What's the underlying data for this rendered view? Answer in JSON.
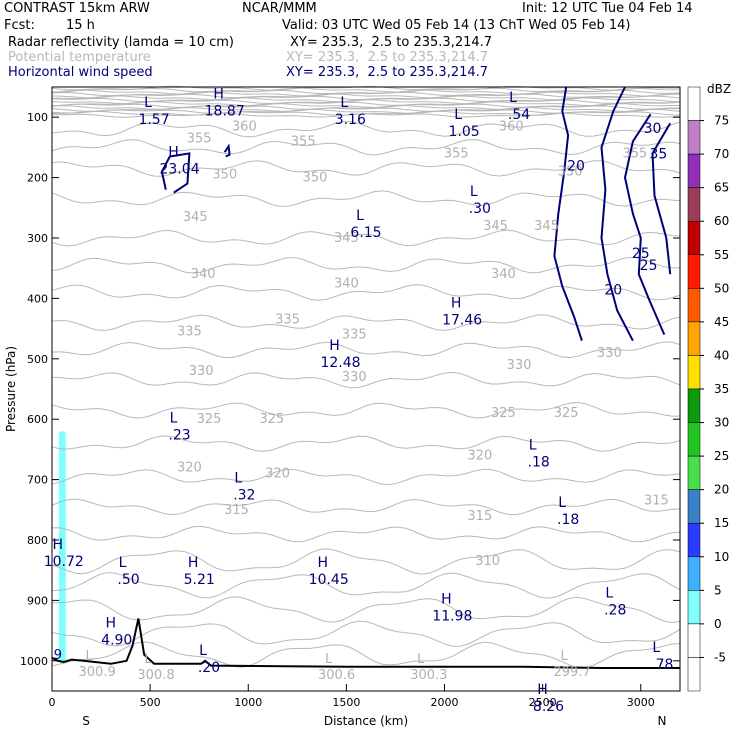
{
  "header": {
    "model": "CONTRAST 15km ARW",
    "org": "NCAR/MMM",
    "init": "Init: 12 UTC Tue 04 Feb 14",
    "fcst_label": "Fcst:",
    "fcst_value": "15 h",
    "valid": "Valid: 03 UTC Wed 05 Feb 14 (13 ChT Wed 05 Feb 14)",
    "fields": [
      {
        "name": "Radar reflectivity (lamda = 10 cm)",
        "xy": "XY= 235.3,  2.5 to 235.3,214.7"
      },
      {
        "name": "Potential temperature",
        "xy": "XY= 235.3,  2.5 to 235.3,214.7"
      },
      {
        "name": "Horizontal wind speed",
        "xy": "XY= 235.3,  2.5 to 235.3,214.7"
      }
    ]
  },
  "chart_data": {
    "type": "cross-section",
    "xlabel": "Distance (km)",
    "ylabel": "Pressure (hPa)",
    "xlim": [
      0,
      3200
    ],
    "ylim": [
      1050,
      50
    ],
    "x_ticks": [
      0,
      500,
      1000,
      1500,
      2000,
      2500,
      3000
    ],
    "y_ticks": [
      100,
      200,
      300,
      400,
      500,
      600,
      700,
      800,
      900,
      1000
    ],
    "endpoint_labels": {
      "left": "S",
      "right": "N"
    },
    "colorbar": {
      "unit": "dBZ",
      "ticks": [
        "-5",
        "0",
        "5",
        "10",
        "15",
        "20",
        "25",
        "30",
        "35",
        "40",
        "45",
        "50",
        "55",
        "60",
        "65",
        "70",
        "75"
      ],
      "colors": [
        "#ffffff",
        "#ffffff",
        "#80ffff",
        "#3fb0ff",
        "#2a3cff",
        "#3a82c8",
        "#48e048",
        "#22c422",
        "#0e9a0e",
        "#ffe000",
        "#ffa400",
        "#ff5a00",
        "#ff1a00",
        "#c00000",
        "#9c3c58",
        "#9030b8",
        "#c080c8",
        "#ffffff"
      ]
    },
    "theta_labels": [
      {
        "text": "360",
        "x": 980,
        "p": 115
      },
      {
        "text": "360",
        "x": 2340,
        "p": 115
      },
      {
        "text": "355",
        "x": 750,
        "p": 135
      },
      {
        "text": "355",
        "x": 1280,
        "p": 140
      },
      {
        "text": "355",
        "x": 2060,
        "p": 160
      },
      {
        "text": "355",
        "x": 2970,
        "p": 160
      },
      {
        "text": "350",
        "x": 880,
        "p": 195
      },
      {
        "text": "350",
        "x": 1340,
        "p": 200
      },
      {
        "text": "350",
        "x": 2640,
        "p": 190
      },
      {
        "text": "345",
        "x": 730,
        "p": 265
      },
      {
        "text": "345",
        "x": 1500,
        "p": 300
      },
      {
        "text": "345",
        "x": 2260,
        "p": 280
      },
      {
        "text": "345",
        "x": 2520,
        "p": 280
      },
      {
        "text": "340",
        "x": 770,
        "p": 360
      },
      {
        "text": "340",
        "x": 1500,
        "p": 375
      },
      {
        "text": "340",
        "x": 2300,
        "p": 360
      },
      {
        "text": "335",
        "x": 700,
        "p": 455
      },
      {
        "text": "335",
        "x": 1200,
        "p": 435
      },
      {
        "text": "335",
        "x": 1540,
        "p": 460
      },
      {
        "text": "330",
        "x": 760,
        "p": 520
      },
      {
        "text": "330",
        "x": 1540,
        "p": 530
      },
      {
        "text": "330",
        "x": 2380,
        "p": 510
      },
      {
        "text": "330",
        "x": 2840,
        "p": 490
      },
      {
        "text": "325",
        "x": 800,
        "p": 600
      },
      {
        "text": "325",
        "x": 1120,
        "p": 600
      },
      {
        "text": "325",
        "x": 2300,
        "p": 590
      },
      {
        "text": "325",
        "x": 2620,
        "p": 590
      },
      {
        "text": "320",
        "x": 700,
        "p": 680
      },
      {
        "text": "320",
        "x": 1150,
        "p": 690
      },
      {
        "text": "320",
        "x": 2180,
        "p": 660
      },
      {
        "text": "315",
        "x": 940,
        "p": 750
      },
      {
        "text": "315",
        "x": 2180,
        "p": 760
      },
      {
        "text": "315",
        "x": 3080,
        "p": 735
      },
      {
        "text": "310",
        "x": 2220,
        "p": 835
      }
    ],
    "theta_extremes": [
      {
        "type": "L",
        "value": "300.9",
        "x": 230,
        "p": 1015
      },
      {
        "type": "L",
        "value": "300.8",
        "x": 530,
        "p": 1020
      },
      {
        "type": "L",
        "value": "300.6",
        "x": 1450,
        "p": 1020
      },
      {
        "type": "L",
        "value": "300.3",
        "x": 1920,
        "p": 1020
      },
      {
        "type": "L",
        "value": "299.7",
        "x": 2650,
        "p": 1015
      }
    ],
    "wind_labels": [
      {
        "text": "30",
        "x": 3060,
        "p": 118
      },
      {
        "text": "35",
        "x": 3090,
        "p": 160
      },
      {
        "text": "20",
        "x": 2670,
        "p": 180
      },
      {
        "text": "25",
        "x": 3040,
        "p": 345
      },
      {
        "text": "25",
        "x": 3000,
        "p": 325
      },
      {
        "text": "20",
        "x": 2860,
        "p": 385
      }
    ],
    "wind_extremes": [
      {
        "type": "L",
        "value": "1.57",
        "x": 520,
        "p": 98
      },
      {
        "type": "H",
        "value": "18.87",
        "x": 880,
        "p": 84
      },
      {
        "type": "L",
        "value": "3.16",
        "x": 1520,
        "p": 98
      },
      {
        "type": "L",
        "value": "1.05",
        "x": 2100,
        "p": 118
      },
      {
        "type": "L",
        "value": ".54",
        "x": 2380,
        "p": 90
      },
      {
        "type": "H",
        "value": "23.04",
        "x": 650,
        "p": 180
      },
      {
        "type": "L",
        "value": "6.15",
        "x": 1600,
        "p": 285
      },
      {
        "type": "L",
        "value": ".30",
        "x": 2180,
        "p": 245
      },
      {
        "type": "H",
        "value": "17.46",
        "x": 2090,
        "p": 430
      },
      {
        "type": "H",
        "value": "12.48",
        "x": 1470,
        "p": 500
      },
      {
        "type": "L",
        "value": ".23",
        "x": 650,
        "p": 620
      },
      {
        "type": "L",
        "value": ".32",
        "x": 980,
        "p": 720
      },
      {
        "type": "L",
        "value": ".18",
        "x": 2480,
        "p": 665
      },
      {
        "type": "L",
        "value": ".18",
        "x": 2630,
        "p": 760
      },
      {
        "type": "H",
        "value": "10.72",
        "x": 60,
        "p": 830
      },
      {
        "type": "L",
        "value": ".50",
        "x": 390,
        "p": 860
      },
      {
        "type": "H",
        "value": "5.21",
        "x": 750,
        "p": 860
      },
      {
        "type": "H",
        "value": "10.45",
        "x": 1410,
        "p": 860
      },
      {
        "type": "H",
        "value": "11.98",
        "x": 2040,
        "p": 920
      },
      {
        "type": "L",
        "value": ".28",
        "x": 2870,
        "p": 910
      },
      {
        "type": "H",
        "value": "4.90",
        "x": 330,
        "p": 960
      },
      {
        "type": "L",
        "value": ".20",
        "x": 800,
        "p": 1005
      },
      {
        "type": "L",
        "value": ".78",
        "x": 3110,
        "p": 1000
      },
      {
        "type": "H",
        "value": "8.26",
        "x": 2530,
        "p": 1070
      }
    ],
    "reflectivity_edge_label": {
      "text": "9",
      "x": 20,
      "p": 990
    }
  }
}
